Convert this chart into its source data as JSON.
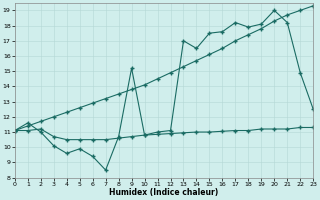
{
  "xlabel": "Humidex (Indice chaleur)",
  "xlim": [
    0,
    23
  ],
  "ylim": [
    8,
    19.5
  ],
  "xticks": [
    0,
    1,
    2,
    3,
    4,
    5,
    6,
    7,
    8,
    9,
    10,
    11,
    12,
    13,
    14,
    15,
    16,
    17,
    18,
    19,
    20,
    21,
    22,
    23
  ],
  "yticks": [
    8,
    9,
    10,
    11,
    12,
    13,
    14,
    15,
    16,
    17,
    18,
    19
  ],
  "bg_color": "#d0eeec",
  "line_color": "#1a6b63",
  "line1_x": [
    0,
    1,
    2,
    3,
    4,
    5,
    6,
    7,
    8,
    9,
    10,
    11,
    12,
    13,
    14,
    15,
    16,
    17,
    18,
    19,
    20,
    21,
    22,
    23
  ],
  "line1_y": [
    11.1,
    11.6,
    11.0,
    10.1,
    9.6,
    9.9,
    9.4,
    8.5,
    10.7,
    15.2,
    10.8,
    11.0,
    11.1,
    17.0,
    16.5,
    17.5,
    17.6,
    18.2,
    17.9,
    18.1,
    19.0,
    18.2,
    14.9,
    12.5
  ],
  "line2_x": [
    0,
    1,
    2,
    3,
    4,
    5,
    6,
    7,
    8,
    9,
    10,
    11,
    12,
    13,
    14,
    15,
    16,
    17,
    18,
    19,
    20,
    21,
    22,
    23
  ],
  "line2_y": [
    11.1,
    11.4,
    11.7,
    12.0,
    12.3,
    12.6,
    12.9,
    13.2,
    13.5,
    13.8,
    14.1,
    14.5,
    14.9,
    15.3,
    15.7,
    16.1,
    16.5,
    17.0,
    17.4,
    17.8,
    18.3,
    18.7,
    19.0,
    19.3
  ],
  "line3_x": [
    0,
    1,
    2,
    3,
    4,
    5,
    6,
    7,
    8,
    9,
    10,
    11,
    12,
    13,
    14,
    15,
    16,
    17,
    18,
    19,
    20,
    21,
    22,
    23
  ],
  "line3_y": [
    11.1,
    11.1,
    11.2,
    10.7,
    10.5,
    10.5,
    10.5,
    10.5,
    10.6,
    10.7,
    10.8,
    10.85,
    10.9,
    10.95,
    11.0,
    11.0,
    11.05,
    11.1,
    11.1,
    11.2,
    11.2,
    11.2,
    11.3,
    11.3
  ]
}
